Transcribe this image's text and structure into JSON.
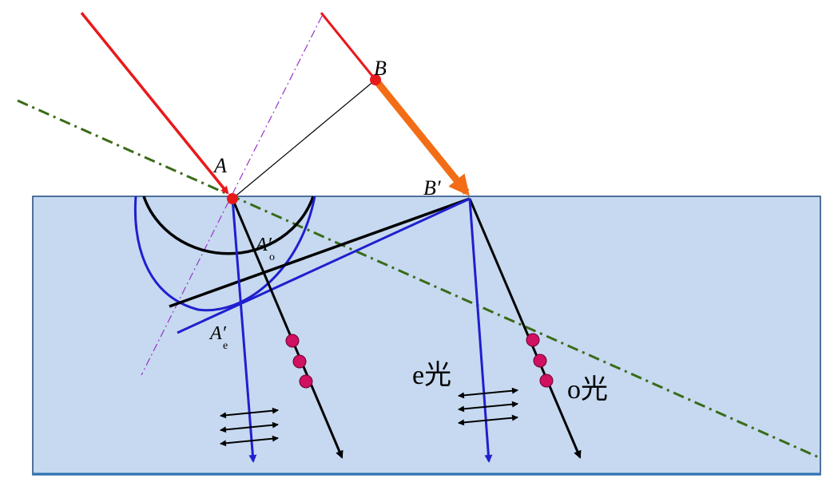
{
  "figure": {
    "labels": {
      "A": "A",
      "B": "B",
      "B_prime": "B′",
      "A_o_main": "A′",
      "A_o_sub": "o",
      "A_e_main": "A′",
      "A_e_sub": "e",
      "e_light": "e光",
      "o_light": "o光"
    },
    "colors": {
      "crystal_fill": "#c6d9f0",
      "crystal_border": "#1f497d",
      "incident_ray": "#e8191b",
      "wavefront_arrow": "#f26d16",
      "point_marker": "#e8191b",
      "o_ray": "#000000",
      "e_ray": "#1f1fcf",
      "optic_axis": "#3a6b18",
      "normal_line": "#9933cc",
      "polarization_dot": "#d01060"
    }
  }
}
